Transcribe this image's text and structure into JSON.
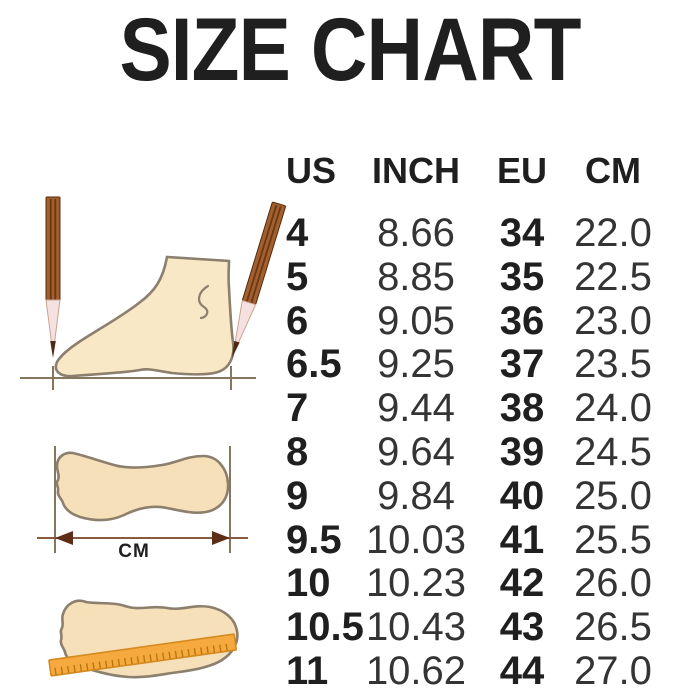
{
  "title": "SIZE CHART",
  "chart_data": {
    "type": "table",
    "title": "SIZE CHART",
    "columns": [
      "US",
      "INCH",
      "EU",
      "CM"
    ],
    "rows": [
      [
        "4",
        "8.66",
        "34",
        "22.0"
      ],
      [
        "5",
        "8.85",
        "35",
        "22.5"
      ],
      [
        "6",
        "9.05",
        "36",
        "23.0"
      ],
      [
        "6.5",
        "9.25",
        "37",
        "23.5"
      ],
      [
        "7",
        "9.44",
        "38",
        "24.0"
      ],
      [
        "8",
        "9.64",
        "39",
        "24.5"
      ],
      [
        "9",
        "9.84",
        "40",
        "25.0"
      ],
      [
        "9.5",
        "10.03",
        "41",
        "25.5"
      ],
      [
        "10",
        "10.23",
        "42",
        "26.0"
      ],
      [
        "10.5",
        "10.43",
        "43",
        "26.5"
      ],
      [
        "11",
        "10.62",
        "44",
        "27.0"
      ]
    ]
  },
  "labels": {
    "cm_arrow": "CM"
  },
  "icons": {
    "foot_side": "foot-profile-with-measuring-pencils",
    "footprint_width": "footprint-with-length-arrow",
    "footprint_ruler": "footprint-with-ruler"
  },
  "colors": {
    "bg": "#ffffff",
    "ink": "#1f1f1f",
    "value-ink": "#343434",
    "outline": "#8d7f6d",
    "foot-fill": "#f8e8c6",
    "footprint-fill": "#f6e0ba",
    "measure-line": "#86765f",
    "arrow-line": "#8a5a40",
    "arrow-head": "#5d2d15",
    "pencil-body": "#a2602e",
    "pencil-stripe": "#6b3714",
    "pencil-edge": "#53290f",
    "pencil-tip": "#f5e2e0",
    "pencil-lead": "#4f2a12",
    "ruler-fill": "#f6a93e",
    "ruler-edge": "#d48a1f",
    "ruler-tick": "#b9770f"
  }
}
